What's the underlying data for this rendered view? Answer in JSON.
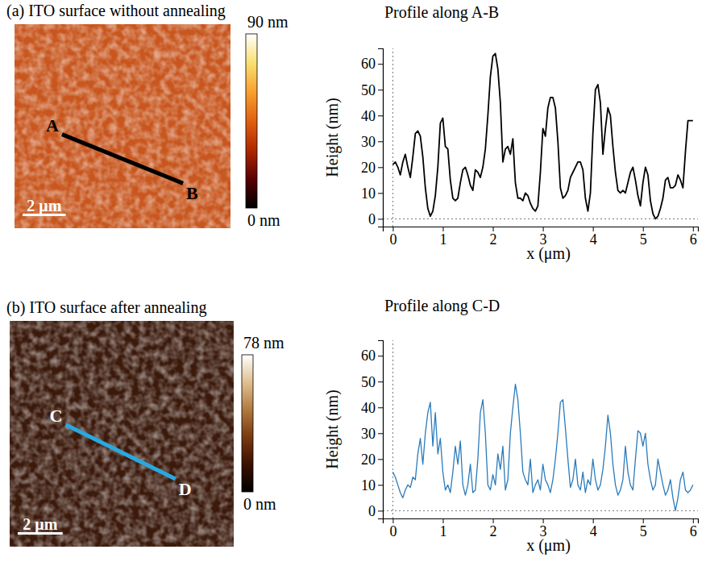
{
  "chart_data": [
    {
      "type": "image",
      "title": "(a) ITO surface without annealing",
      "color": "#c8561e",
      "xlim": [
        0,
        10
      ],
      "ylim": [
        0,
        10
      ],
      "path": {
        "x": [
          2.2,
          7.8
        ],
        "y": [
          4.6,
          2.2
        ],
        "labels": [
          "A",
          "B"
        ],
        "color": "#000000"
      },
      "scale_bar": {
        "value": 2,
        "label": "2 μm"
      },
      "colorbar": {
        "range": [
          0,
          90
        ],
        "ticks": [
          {
            "value": 90,
            "label": "90 nm"
          },
          {
            "value": 0,
            "label": "0 nm"
          }
        ],
        "colors": [
          "#000000",
          "#5a0000",
          "#b02800",
          "#e06010",
          "#f8a030",
          "#f8e070",
          "#ffffff"
        ]
      }
    },
    {
      "type": "line",
      "title": "Profile along A-B",
      "x_label": "x (μm)",
      "y_label": "Height (nm)",
      "xlim": [
        -0.2,
        6.1
      ],
      "ylim": [
        -3,
        66
      ],
      "xticks": [
        0,
        1,
        2,
        3,
        4,
        5,
        6
      ],
      "yticks": [
        0,
        10,
        20,
        30,
        40,
        50,
        60
      ],
      "x": [
        0,
        0.05,
        0.1,
        0.15,
        0.2,
        0.25,
        0.3,
        0.35,
        0.4,
        0.45,
        0.5,
        0.55,
        0.6,
        0.65,
        0.7,
        0.75,
        0.8,
        0.85,
        0.9,
        0.95,
        1,
        1.05,
        1.1,
        1.15,
        1.2,
        1.25,
        1.3,
        1.35,
        1.4,
        1.45,
        1.5,
        1.55,
        1.6,
        1.65,
        1.7,
        1.75,
        1.8,
        1.85,
        1.9,
        1.95,
        2,
        2.05,
        2.1,
        2.15,
        2.2,
        2.25,
        2.3,
        2.35,
        2.4,
        2.45,
        2.5,
        2.55,
        2.6,
        2.65,
        2.7,
        2.75,
        2.8,
        2.85,
        2.9,
        2.95,
        3,
        3.05,
        3.1,
        3.15,
        3.2,
        3.25,
        3.3,
        3.35,
        3.4,
        3.45,
        3.5,
        3.55,
        3.6,
        3.65,
        3.7,
        3.75,
        3.8,
        3.85,
        3.9,
        3.95,
        4,
        4.05,
        4.1,
        4.15,
        4.2,
        4.25,
        4.3,
        4.35,
        4.4,
        4.45,
        4.5,
        4.55,
        4.6,
        4.65,
        4.7,
        4.75,
        4.8,
        4.85,
        4.9,
        4.95,
        5,
        5.05,
        5.1,
        5.15,
        5.2,
        5.25,
        5.3,
        5.35,
        5.4,
        5.45,
        5.5,
        5.55,
        5.6,
        5.65,
        5.7,
        5.75,
        5.8,
        5.85,
        5.9,
        5.95,
        6
      ],
      "series": [
        {
          "color": "#000000",
          "values": [
            21,
            22,
            20,
            17,
            22,
            25,
            20,
            16,
            24,
            33,
            34,
            32,
            24,
            12,
            4,
            1,
            3,
            9,
            20,
            37,
            39,
            28,
            27,
            15,
            8,
            7,
            8,
            14,
            19,
            20,
            17,
            13,
            11,
            19,
            18,
            16,
            20,
            27,
            40,
            55,
            63,
            64,
            58,
            45,
            22,
            27,
            28,
            25,
            31,
            14,
            8,
            8,
            7,
            10,
            9,
            6,
            4,
            3,
            5,
            18,
            35,
            32,
            43,
            47,
            47,
            43,
            30,
            12,
            8,
            9,
            11,
            16,
            18,
            20,
            22,
            22,
            19,
            8,
            3,
            10,
            33,
            50,
            52,
            45,
            25,
            35,
            43,
            40,
            28,
            18,
            11,
            10,
            11,
            10,
            14,
            18,
            20,
            15,
            9,
            5,
            14,
            20,
            17,
            7,
            2,
            0,
            1,
            4,
            8,
            15,
            16,
            12,
            12,
            13,
            17,
            15,
            12,
            26,
            38,
            38,
            38
          ]
        }
      ]
    },
    {
      "type": "image",
      "title": "(b) ITO surface after annealing",
      "color": "#3b1a0c",
      "xlim": [
        0,
        10
      ],
      "ylim": [
        0,
        10
      ],
      "path": {
        "x": [
          2.5,
          7.4
        ],
        "y": [
          5.4,
          3.0
        ],
        "labels": [
          "C",
          "D"
        ],
        "color": "#29a8e0"
      },
      "scale_bar": {
        "value": 2,
        "label": "2 μm"
      },
      "colorbar": {
        "range": [
          0,
          78
        ],
        "ticks": [
          {
            "value": 78,
            "label": "78 nm"
          },
          {
            "value": 0,
            "label": "0 nm"
          }
        ],
        "colors": [
          "#000000",
          "#3a1000",
          "#7a3a10",
          "#b07a40",
          "#e0c090",
          "#ffffff"
        ]
      }
    },
    {
      "type": "line",
      "title": "Profile along C-D",
      "x_label": "x (μm)",
      "y_label": "Height (nm)",
      "xlim": [
        -0.2,
        6.1
      ],
      "ylim": [
        -3,
        66
      ],
      "xticks": [
        0,
        1,
        2,
        3,
        4,
        5,
        6
      ],
      "yticks": [
        0,
        10,
        20,
        30,
        40,
        50,
        60
      ],
      "x": [
        0,
        0.05,
        0.1,
        0.15,
        0.2,
        0.25,
        0.3,
        0.35,
        0.4,
        0.45,
        0.5,
        0.55,
        0.6,
        0.65,
        0.7,
        0.75,
        0.8,
        0.85,
        0.9,
        0.95,
        1,
        1.05,
        1.1,
        1.15,
        1.2,
        1.25,
        1.3,
        1.35,
        1.4,
        1.45,
        1.5,
        1.55,
        1.6,
        1.65,
        1.7,
        1.75,
        1.8,
        1.85,
        1.9,
        1.95,
        2,
        2.05,
        2.1,
        2.15,
        2.2,
        2.25,
        2.3,
        2.35,
        2.4,
        2.45,
        2.5,
        2.55,
        2.6,
        2.65,
        2.7,
        2.75,
        2.8,
        2.85,
        2.9,
        2.95,
        3,
        3.05,
        3.1,
        3.15,
        3.2,
        3.25,
        3.3,
        3.35,
        3.4,
        3.45,
        3.5,
        3.55,
        3.6,
        3.65,
        3.7,
        3.75,
        3.8,
        3.85,
        3.9,
        3.95,
        4,
        4.05,
        4.1,
        4.15,
        4.2,
        4.25,
        4.3,
        4.35,
        4.4,
        4.45,
        4.5,
        4.55,
        4.6,
        4.65,
        4.7,
        4.75,
        4.8,
        4.85,
        4.9,
        4.95,
        5,
        5.05,
        5.1,
        5.15,
        5.2,
        5.25,
        5.3,
        5.35,
        5.4,
        5.45,
        5.5,
        5.55,
        5.6,
        5.65,
        5.7,
        5.75,
        5.8,
        5.85,
        5.9,
        5.95,
        6
      ],
      "series": [
        {
          "color": "#2b7bba",
          "values": [
            15,
            13,
            10,
            7,
            5,
            8,
            10,
            9,
            13,
            12,
            22,
            28,
            18,
            30,
            38,
            42,
            25,
            38,
            22,
            28,
            15,
            8,
            10,
            7,
            15,
            25,
            18,
            27,
            10,
            6,
            10,
            18,
            7,
            8,
            20,
            38,
            43,
            30,
            10,
            8,
            14,
            10,
            22,
            16,
            25,
            8,
            12,
            30,
            40,
            49,
            43,
            30,
            15,
            12,
            10,
            20,
            7,
            10,
            12,
            8,
            18,
            12,
            10,
            7,
            12,
            20,
            30,
            42,
            43,
            32,
            20,
            9,
            12,
            20,
            10,
            8,
            15,
            7,
            12,
            10,
            20,
            12,
            8,
            10,
            16,
            25,
            37,
            30,
            18,
            10,
            6,
            8,
            12,
            25,
            15,
            10,
            8,
            20,
            31,
            30,
            25,
            30,
            18,
            12,
            8,
            10,
            20,
            15,
            10,
            6,
            8,
            12,
            5,
            0,
            5,
            12,
            15,
            8,
            7,
            8,
            10
          ]
        }
      ]
    }
  ]
}
